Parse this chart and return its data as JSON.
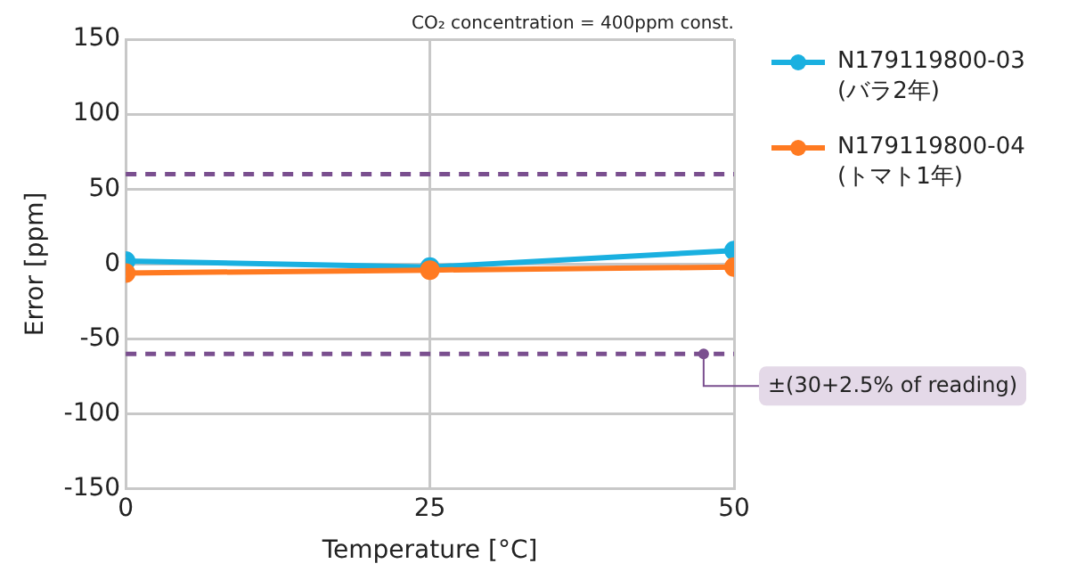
{
  "chart_data": {
    "type": "line",
    "subtitle": "CO₂ concentration = 400ppm const.",
    "xlabel": "Temperature [°C]",
    "ylabel": "Error [ppm]",
    "x": [
      0,
      25,
      50
    ],
    "xlim": [
      0,
      50
    ],
    "xticks": [
      0,
      25,
      50
    ],
    "ylim": [
      -150,
      150
    ],
    "yticks": [
      -150,
      -100,
      -50,
      0,
      50,
      100,
      150
    ],
    "series": [
      {
        "name": "N179119800-03\n(バラ2年)",
        "color": "#1ab0e0",
        "values": [
          2,
          -2,
          9
        ]
      },
      {
        "name": "N179119800-04\n(トマト1年)",
        "color": "#ff7a21",
        "values": [
          -6,
          -4,
          -2
        ]
      }
    ],
    "ref_lines": [
      {
        "axis": "y",
        "value": 60,
        "color": "#7a4f8f",
        "line_style": "dashed"
      },
      {
        "axis": "y",
        "value": -60,
        "color": "#7a4f8f",
        "line_style": "dashed"
      }
    ],
    "annotations": [
      {
        "text": "±(30+2.5% of reading)",
        "x": 47.5,
        "y": -60
      }
    ],
    "grid": true,
    "legend": "right",
    "marker": "circle",
    "line_style": "solid"
  }
}
